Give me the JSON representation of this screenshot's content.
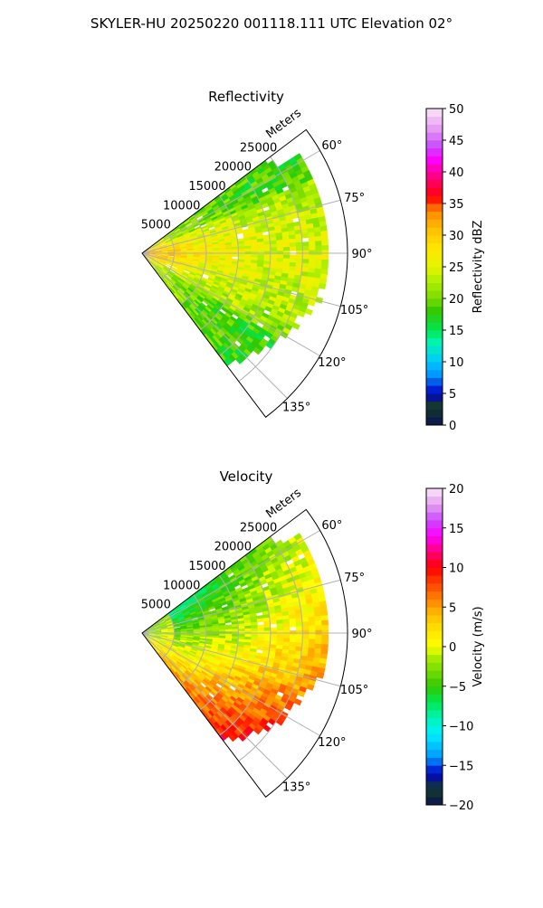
{
  "suptitle": "SKYLER-HU  20250220  001118.111 UTC Elevation 02°",
  "chart_data": [
    {
      "type": "heatmap",
      "subtype": "polar-ppi-sector",
      "title": "Reflectivity",
      "range_label": "Meters",
      "range_max": 32000,
      "range_ticks": [
        5000,
        10000,
        15000,
        20000,
        25000
      ],
      "range_tick_labels": [
        "5000",
        "10000",
        "15000",
        "20000",
        "25000"
      ],
      "azimuth_range": [
        53,
        143
      ],
      "azimuth_ticks": [
        60,
        75,
        90,
        105,
        120,
        135
      ],
      "azimuth_tick_labels": [
        "60°",
        "75°",
        "90°",
        "105°",
        "120°",
        "135°"
      ],
      "grid": true,
      "colorbar": {
        "label": "Reflectivity dBZ",
        "vmin": 0,
        "vmax": 50,
        "ticks": [
          0,
          5,
          10,
          15,
          20,
          25,
          30,
          35,
          40,
          45,
          50
        ],
        "tick_labels": [
          "0",
          "5",
          "10",
          "15",
          "20",
          "25",
          "30",
          "35",
          "40",
          "45",
          "50"
        ],
        "stops": [
          {
            "v": 0,
            "color": "#0a1450"
          },
          {
            "v": 3,
            "color": "#143c28"
          },
          {
            "v": 5,
            "color": "#0000c8"
          },
          {
            "v": 8,
            "color": "#0096ff"
          },
          {
            "v": 10,
            "color": "#00c8ff"
          },
          {
            "v": 13,
            "color": "#00f5b4"
          },
          {
            "v": 15,
            "color": "#00e650"
          },
          {
            "v": 18,
            "color": "#32c800"
          },
          {
            "v": 20,
            "color": "#78dc00"
          },
          {
            "v": 23,
            "color": "#b4f000"
          },
          {
            "v": 25,
            "color": "#e6f500"
          },
          {
            "v": 28,
            "color": "#ffe600"
          },
          {
            "v": 31,
            "color": "#ffbe00"
          },
          {
            "v": 34,
            "color": "#ff8200"
          },
          {
            "v": 36,
            "color": "#ff0000"
          },
          {
            "v": 39,
            "color": "#ff0078"
          },
          {
            "v": 42,
            "color": "#ff00ff"
          },
          {
            "v": 44,
            "color": "#c84bff"
          },
          {
            "v": 47,
            "color": "#e6a0f0"
          },
          {
            "v": 50,
            "color": "#fae6fa"
          }
        ]
      }
    },
    {
      "type": "heatmap",
      "subtype": "polar-ppi-sector",
      "title": "Velocity",
      "range_label": "Meters",
      "range_max": 32000,
      "range_ticks": [
        5000,
        10000,
        15000,
        20000,
        25000
      ],
      "range_tick_labels": [
        "5000",
        "10000",
        "15000",
        "20000",
        "25000"
      ],
      "azimuth_range": [
        53,
        143
      ],
      "azimuth_ticks": [
        60,
        75,
        90,
        105,
        120,
        135
      ],
      "azimuth_tick_labels": [
        "60°",
        "75°",
        "90°",
        "105°",
        "120°",
        "135°"
      ],
      "grid": true,
      "colorbar": {
        "label": "Velocity (m/s)",
        "vmin": -20,
        "vmax": 20,
        "ticks": [
          -20,
          -15,
          -10,
          -5,
          0,
          5,
          10,
          15,
          20
        ],
        "tick_labels": [
          "−20",
          "−15",
          "−10",
          "−5",
          "0",
          "5",
          "10",
          "15",
          "20"
        ],
        "stops": [
          {
            "v": -20,
            "color": "#0a1450"
          },
          {
            "v": -18,
            "color": "#143c28"
          },
          {
            "v": -16,
            "color": "#0000c8"
          },
          {
            "v": -14,
            "color": "#0096ff"
          },
          {
            "v": -11,
            "color": "#00f0ff"
          },
          {
            "v": -9,
            "color": "#00f5b4"
          },
          {
            "v": -7,
            "color": "#00e650"
          },
          {
            "v": -5,
            "color": "#32c800"
          },
          {
            "v": -3,
            "color": "#78dc00"
          },
          {
            "v": -1,
            "color": "#b4f000"
          },
          {
            "v": 0,
            "color": "#ffff00"
          },
          {
            "v": 2,
            "color": "#ffe600"
          },
          {
            "v": 4,
            "color": "#ffbe00"
          },
          {
            "v": 7,
            "color": "#ff6400"
          },
          {
            "v": 10,
            "color": "#ff0000"
          },
          {
            "v": 12,
            "color": "#ff0078"
          },
          {
            "v": 14,
            "color": "#ff00ff"
          },
          {
            "v": 16,
            "color": "#c84bff"
          },
          {
            "v": 18,
            "color": "#e6a0f0"
          },
          {
            "v": 20,
            "color": "#fae6fa"
          }
        ]
      }
    }
  ]
}
